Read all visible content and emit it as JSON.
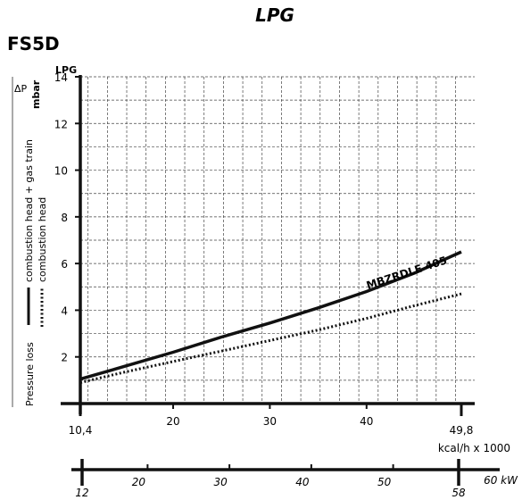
{
  "page": {
    "title": "LPG",
    "model": "FS5D"
  },
  "chart_data": {
    "type": "line",
    "fuel_label": "LPG",
    "ylabel_symbol": "ΔP",
    "ylabel_unit": "mbar",
    "ylim": [
      0,
      14
    ],
    "y_ticks": [
      2,
      4,
      6,
      8,
      10,
      12,
      14
    ],
    "grid": true,
    "x_range_kcal": [
      10.4,
      49.8
    ],
    "x_ticks_kcal": [
      "20",
      "30",
      "40"
    ],
    "x_end_labels_kcal": [
      "10,4",
      "49,8"
    ],
    "x_unit_kcal": "kcal/h x 1000",
    "kw_ticks": [
      "20",
      "30",
      "40",
      "50"
    ],
    "kw_end_labels": [
      "12",
      "58"
    ],
    "kw_unit": "60 kW",
    "series": [
      {
        "name": "MBZRDLE 405",
        "style": "solid",
        "color": "#111111",
        "x": [
          10.4,
          15,
          20,
          25,
          30,
          35,
          40,
          45,
          49.8
        ],
        "y": [
          1.05,
          1.6,
          2.2,
          2.85,
          3.45,
          4.1,
          4.8,
          5.6,
          6.5
        ]
      },
      {
        "name": "",
        "style": "dotted",
        "color": "#111111",
        "x": [
          10.4,
          15,
          20,
          25,
          30,
          35,
          40,
          45,
          49.8
        ],
        "y": [
          0.9,
          1.35,
          1.8,
          2.25,
          2.7,
          3.15,
          3.65,
          4.2,
          4.7
        ]
      }
    ],
    "legend": {
      "title": "Pressure loss",
      "items": [
        {
          "label": "combustion head + gas train",
          "style": "solid"
        },
        {
          "label": "combustion head",
          "style": "dotted"
        }
      ]
    }
  }
}
